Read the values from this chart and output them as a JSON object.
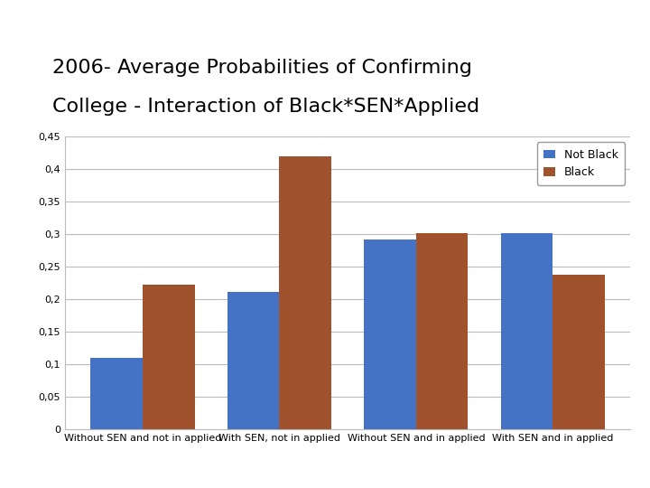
{
  "title_line1": "2006- Average Probabilities of Confirming",
  "title_line2": "College - Interaction of Black*SEN*Applied",
  "categories": [
    "Without SEN and not in applied",
    "With SEN, not in applied",
    "Without SEN and in applied",
    "With SEN and in applied"
  ],
  "not_black": [
    0.11,
    0.212,
    0.292,
    0.301
  ],
  "black": [
    0.223,
    0.42,
    0.301,
    0.238
  ],
  "not_black_color": "#4472C4",
  "black_color": "#A0522D",
  "legend_labels": [
    "Not Black",
    "Black"
  ],
  "ylim": [
    0,
    0.45
  ],
  "yticks": [
    0,
    0.05,
    0.1,
    0.15,
    0.2,
    0.25,
    0.3,
    0.35,
    0.4,
    0.45
  ],
  "ytick_labels": [
    "0",
    "0,05",
    "0,1",
    "0,15",
    "0,2",
    "0,25",
    "0,3",
    "0,35",
    "0,4",
    "0,45"
  ],
  "background_color": "#FFFFFF",
  "title_fontsize": 16,
  "tick_fontsize": 8,
  "xlabel_fontsize": 8,
  "legend_fontsize": 9,
  "bar_width": 0.38,
  "grid_color": "#BBBBBB"
}
